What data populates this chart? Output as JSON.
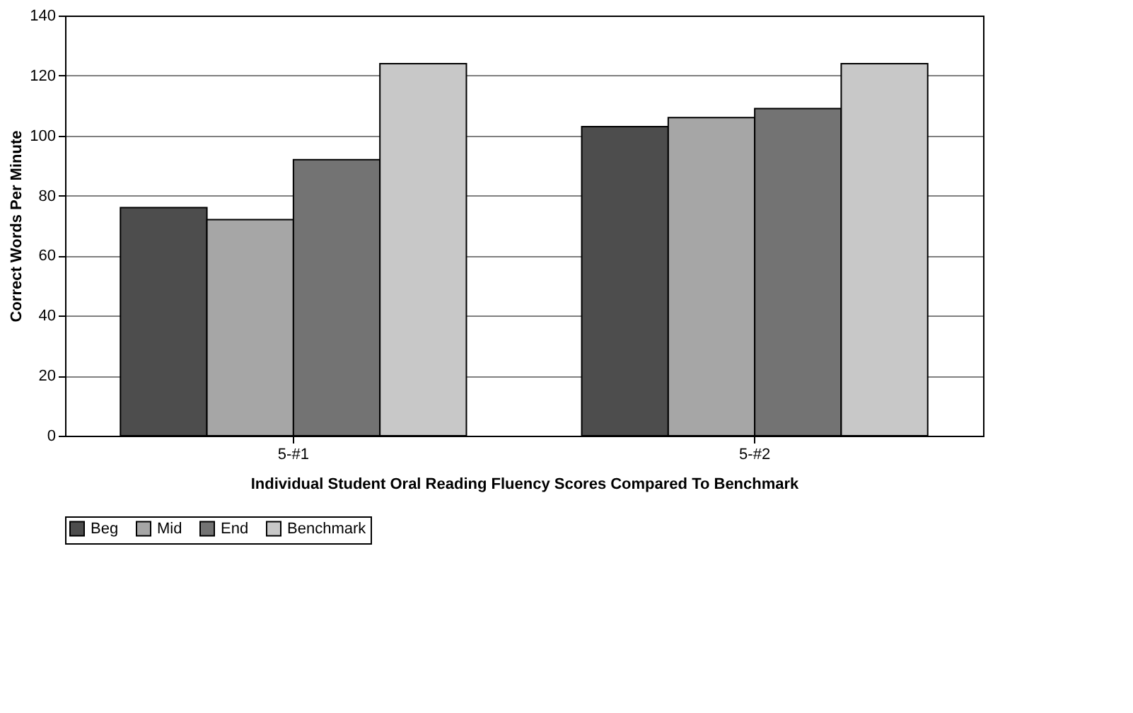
{
  "chart_data": {
    "type": "bar",
    "xlabel": "Individual Student Oral Reading Fluency Scores Compared To Benchmark",
    "ylabel": "Correct Words Per Minute",
    "categories": [
      "5-#1",
      "5-#2"
    ],
    "series": [
      {
        "name": "Beg",
        "color": "#4d4d4d",
        "values": [
          76,
          103
        ]
      },
      {
        "name": "Mid",
        "color": "#a6a6a6",
        "values": [
          72,
          106
        ]
      },
      {
        "name": "End",
        "color": "#737373",
        "values": [
          92,
          109
        ]
      },
      {
        "name": "Benchmark",
        "color": "#c8c8c8",
        "values": [
          124,
          124
        ]
      }
    ],
    "ylim": [
      0,
      140
    ],
    "yticks": [
      0,
      20,
      40,
      60,
      80,
      100,
      120,
      140
    ],
    "grid": "y",
    "legend": "bottom"
  }
}
